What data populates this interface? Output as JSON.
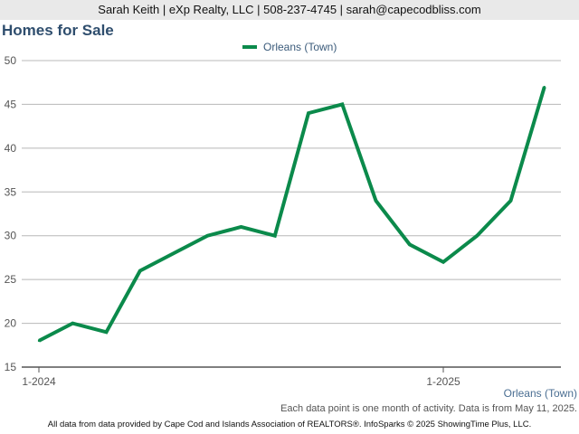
{
  "header": {
    "contact": "Sarah Keith | eXp Realty, LLC | 508-237-4745 | sarah@capecodbliss.com"
  },
  "chart_data": {
    "type": "line",
    "title": "Homes for Sale",
    "x": [
      "2024-01",
      "2024-02",
      "2024-03",
      "2024-04",
      "2024-05",
      "2024-06",
      "2024-07",
      "2024-08",
      "2024-09",
      "2024-10",
      "2024-11",
      "2024-12",
      "2025-01",
      "2025-02",
      "2025-03",
      "2025-04"
    ],
    "series": [
      {
        "name": "Orleans (Town)",
        "values": [
          18,
          20,
          19,
          26,
          28,
          30,
          31,
          30,
          44,
          45,
          34,
          29,
          27,
          30,
          34,
          47
        ]
      }
    ],
    "x_tick_labels": [
      "1-2024",
      "1-2025"
    ],
    "y_ticks": [
      15,
      20,
      25,
      30,
      35,
      40,
      45,
      50
    ],
    "ylim": [
      15,
      50
    ],
    "grid": true,
    "legend_position": "top-center",
    "series_color": "#0b8a4b"
  },
  "corner_label": "Orleans (Town)",
  "note": "Each data point is one month of activity. Data is from May 11, 2025.",
  "footer": "All data from data provided by Cape Cod and Islands Association of REALTORS®. InfoSparks © 2025 ShowingTime Plus, LLC."
}
